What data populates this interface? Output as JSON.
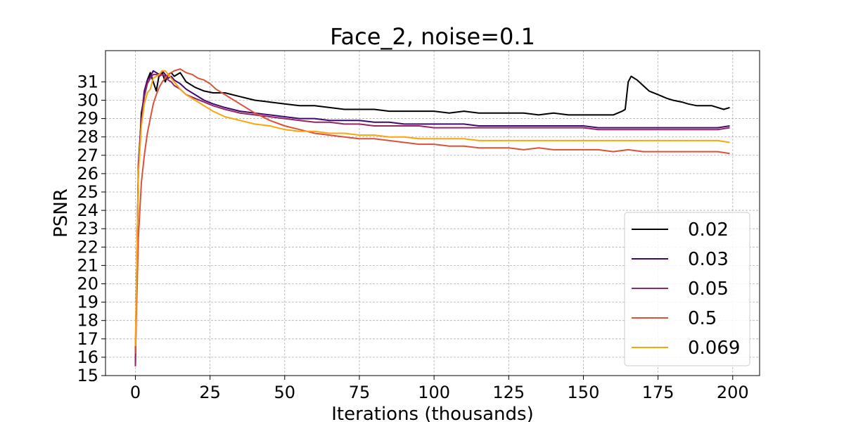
{
  "chart_data": {
    "type": "line",
    "title": "Face_2, noise=0.1",
    "xlabel": "Iterations (thousands)",
    "ylabel": "PSNR",
    "xlim": [
      -10,
      209
    ],
    "ylim": [
      15,
      32.7
    ],
    "xticks": [
      0,
      25,
      50,
      75,
      100,
      125,
      150,
      175,
      200
    ],
    "yticks": [
      15,
      16,
      17,
      18,
      19,
      20,
      21,
      22,
      23,
      24,
      25,
      26,
      27,
      28,
      29,
      30,
      31
    ],
    "grid": true,
    "legend_position": "lower-right",
    "series": [
      {
        "name": "0.02",
        "color": "#000004",
        "x": [
          0,
          1,
          2,
          3,
          4,
          5,
          6,
          7,
          8,
          9,
          10,
          11,
          12,
          13,
          15,
          17,
          20,
          23,
          26,
          30,
          35,
          40,
          45,
          50,
          55,
          60,
          65,
          70,
          75,
          80,
          85,
          90,
          95,
          100,
          105,
          110,
          115,
          120,
          125,
          130,
          135,
          140,
          145,
          150,
          155,
          160,
          163,
          164,
          165,
          166,
          168,
          170,
          172,
          175,
          178,
          180,
          183,
          185,
          188,
          190,
          193,
          195,
          197,
          199
        ],
        "y": [
          16.3,
          26.0,
          29.3,
          30.2,
          31.1,
          31.5,
          31.0,
          30.5,
          31.4,
          31.5,
          31.0,
          31.4,
          31.5,
          31.3,
          31.5,
          31.0,
          30.7,
          30.5,
          30.4,
          30.4,
          30.2,
          30.0,
          29.9,
          29.8,
          29.7,
          29.7,
          29.6,
          29.5,
          29.5,
          29.5,
          29.4,
          29.4,
          29.4,
          29.4,
          29.3,
          29.4,
          29.3,
          29.3,
          29.3,
          29.3,
          29.2,
          29.3,
          29.2,
          29.2,
          29.2,
          29.2,
          29.4,
          29.5,
          31.0,
          31.3,
          31.1,
          30.8,
          30.5,
          30.3,
          30.1,
          30.0,
          29.9,
          29.8,
          29.7,
          29.7,
          29.7,
          29.6,
          29.5,
          29.6
        ]
      },
      {
        "name": "0.03",
        "color": "#420a68",
        "x": [
          0,
          1,
          2,
          3,
          4,
          5,
          6,
          7,
          8,
          9,
          10,
          11,
          12,
          13,
          15,
          17,
          20,
          23,
          26,
          30,
          35,
          40,
          45,
          50,
          55,
          60,
          65,
          70,
          75,
          80,
          85,
          90,
          95,
          100,
          105,
          110,
          115,
          120,
          125,
          130,
          135,
          140,
          145,
          150,
          155,
          160,
          165,
          170,
          175,
          180,
          185,
          190,
          195,
          199
        ],
        "y": [
          15.6,
          26.5,
          29.0,
          30.5,
          31.1,
          31.3,
          31.6,
          31.5,
          31.4,
          31.6,
          31.4,
          31.2,
          31.3,
          31.1,
          30.9,
          30.6,
          30.3,
          30.0,
          29.8,
          29.6,
          29.4,
          29.3,
          29.2,
          29.1,
          29.0,
          29.0,
          28.9,
          28.9,
          28.9,
          28.8,
          28.8,
          28.7,
          28.7,
          28.7,
          28.7,
          28.7,
          28.6,
          28.6,
          28.6,
          28.6,
          28.6,
          28.6,
          28.6,
          28.6,
          28.5,
          28.5,
          28.5,
          28.5,
          28.5,
          28.5,
          28.5,
          28.5,
          28.5,
          28.6
        ]
      },
      {
        "name": "0.05",
        "color": "#932667",
        "x": [
          0,
          1,
          2,
          3,
          4,
          5,
          6,
          7,
          8,
          9,
          10,
          11,
          12,
          13,
          15,
          17,
          20,
          23,
          26,
          30,
          35,
          40,
          45,
          50,
          55,
          60,
          65,
          70,
          75,
          80,
          85,
          90,
          95,
          100,
          105,
          110,
          115,
          120,
          125,
          130,
          135,
          140,
          145,
          150,
          155,
          160,
          165,
          170,
          175,
          180,
          185,
          190,
          195,
          199
        ],
        "y": [
          15.5,
          26.2,
          28.8,
          30.2,
          30.9,
          31.2,
          31.4,
          31.4,
          31.3,
          31.4,
          31.3,
          31.1,
          31.0,
          30.8,
          30.6,
          30.3,
          30.1,
          29.9,
          29.7,
          29.5,
          29.3,
          29.2,
          29.1,
          29.0,
          28.9,
          28.8,
          28.8,
          28.7,
          28.7,
          28.6,
          28.6,
          28.6,
          28.6,
          28.5,
          28.5,
          28.5,
          28.5,
          28.5,
          28.5,
          28.5,
          28.5,
          28.5,
          28.5,
          28.5,
          28.4,
          28.4,
          28.4,
          28.4,
          28.4,
          28.4,
          28.4,
          28.4,
          28.4,
          28.5
        ]
      },
      {
        "name": "0.5",
        "color": "#dd513a",
        "x": [
          0,
          1,
          2,
          3,
          4,
          5,
          6,
          7,
          8,
          9,
          10,
          11,
          12,
          13,
          15,
          17,
          19,
          21,
          23,
          25,
          27,
          30,
          35,
          40,
          45,
          50,
          55,
          60,
          65,
          70,
          75,
          80,
          85,
          90,
          95,
          100,
          105,
          110,
          115,
          120,
          125,
          130,
          135,
          140,
          145,
          150,
          155,
          160,
          165,
          170,
          175,
          180,
          185,
          190,
          195,
          199
        ],
        "y": [
          16.2,
          22.5,
          25.5,
          27.0,
          28.2,
          29.0,
          29.8,
          30.3,
          30.7,
          31.0,
          31.2,
          31.4,
          31.5,
          31.6,
          31.7,
          31.5,
          31.4,
          31.2,
          31.1,
          30.9,
          30.6,
          30.3,
          29.8,
          29.3,
          28.9,
          28.6,
          28.4,
          28.2,
          28.1,
          28.0,
          27.9,
          27.9,
          27.8,
          27.7,
          27.6,
          27.6,
          27.5,
          27.5,
          27.4,
          27.4,
          27.4,
          27.3,
          27.4,
          27.3,
          27.3,
          27.3,
          27.3,
          27.2,
          27.3,
          27.2,
          27.2,
          27.2,
          27.2,
          27.2,
          27.2,
          27.1
        ]
      },
      {
        "name": "0.069",
        "color": "#fca50a",
        "x": [
          0,
          1,
          2,
          3,
          4,
          5,
          6,
          7,
          8,
          9,
          10,
          11,
          12,
          13,
          15,
          17,
          20,
          23,
          26,
          30,
          35,
          40,
          45,
          50,
          55,
          60,
          65,
          70,
          75,
          80,
          85,
          90,
          95,
          100,
          105,
          110,
          115,
          120,
          125,
          130,
          135,
          140,
          145,
          150,
          155,
          160,
          165,
          170,
          175,
          180,
          185,
          190,
          195,
          199
        ],
        "y": [
          16.6,
          26.0,
          28.6,
          29.8,
          30.4,
          30.6,
          31.2,
          31.3,
          31.4,
          31.6,
          31.6,
          31.4,
          31.2,
          31.0,
          30.6,
          30.3,
          30.0,
          29.7,
          29.4,
          29.1,
          28.9,
          28.7,
          28.6,
          28.4,
          28.3,
          28.3,
          28.2,
          28.2,
          28.1,
          28.1,
          28.0,
          28.0,
          27.9,
          27.9,
          27.9,
          27.9,
          27.8,
          27.8,
          27.8,
          27.8,
          27.8,
          27.8,
          27.8,
          27.8,
          27.8,
          27.8,
          27.8,
          27.8,
          27.8,
          27.8,
          27.8,
          27.8,
          27.8,
          27.7
        ]
      }
    ]
  }
}
